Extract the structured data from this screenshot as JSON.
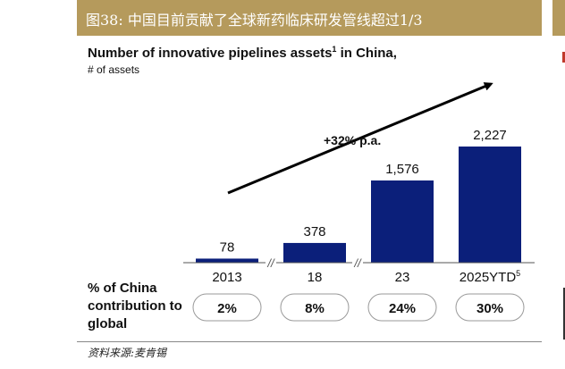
{
  "figure": {
    "banner_title": "图38:  中国目前贡献了全球新药临床研发管线超过1/3",
    "source_note": "资料来源:麦肯锡",
    "accent_color": "#b59a5c",
    "bar_color": "#0b1f7a"
  },
  "chart_data": {
    "type": "bar",
    "title": "Number of innovative pipelines assets",
    "title_superscript": "1",
    "title_suffix": " in China,",
    "subtitle": "# of assets",
    "categories": [
      "2013",
      "18",
      "23",
      "2025YTD"
    ],
    "category_superscripts": [
      "",
      "",
      "",
      "5"
    ],
    "values": [
      78,
      378,
      1576,
      2227
    ],
    "value_labels": [
      "78",
      "378",
      "1,576",
      "2,227"
    ],
    "growth_annotation": "+32% p.a.",
    "axis_breaks": [
      "//",
      "//"
    ],
    "contribution_label": "% of China contribution to global",
    "contribution_values": [
      "2%",
      "8%",
      "24%",
      "30%"
    ],
    "ylim": [
      0,
      2227
    ],
    "legend": "none",
    "grid": false
  }
}
